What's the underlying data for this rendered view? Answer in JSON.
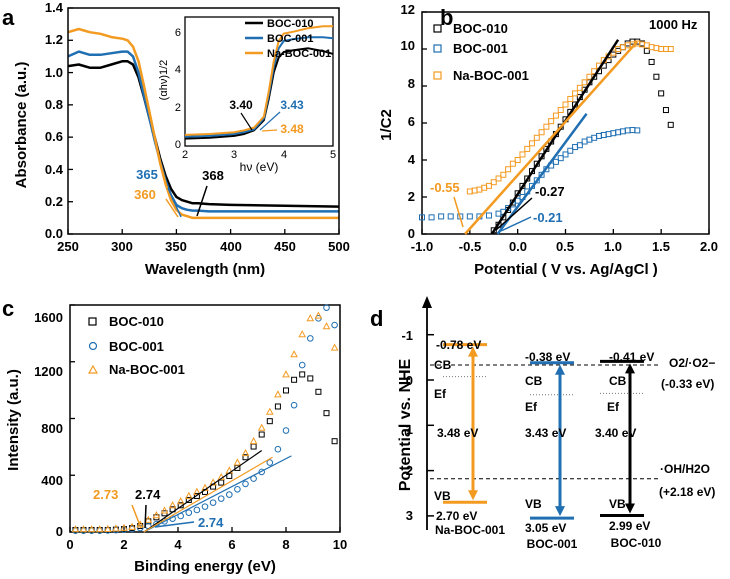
{
  "colors": {
    "black": "#000000",
    "blue": "#1f6fb2",
    "orange": "#f39a21"
  },
  "panel_labels": {
    "a": "a",
    "b": "b",
    "c": "c",
    "d": "d"
  },
  "chart_data": [
    {
      "id": "a",
      "type": "line",
      "title": "",
      "xlabel": "Wavelength (nm)",
      "ylabel": "Absorbance (a.u.)",
      "xlim": [
        250,
        500
      ],
      "ylim": [
        0,
        1.4
      ],
      "xticks": [
        "250",
        "300",
        "350",
        "400",
        "450",
        "500"
      ],
      "yticks": [
        "0.0",
        "0.2",
        "0.4",
        "0.6",
        "0.8",
        "1.0",
        "1.2",
        "1.4"
      ],
      "legend_position": "inset top-right",
      "series": [
        {
          "name": "BOC-010",
          "color": "#000000",
          "x": [
            250,
            260,
            270,
            280,
            290,
            300,
            305,
            310,
            315,
            320,
            325,
            330,
            335,
            340,
            345,
            350,
            355,
            360,
            365,
            370,
            380,
            400,
            450,
            500
          ],
          "y": [
            1.04,
            1.05,
            1.03,
            1.03,
            1.05,
            1.07,
            1.07,
            1.05,
            0.97,
            0.85,
            0.72,
            0.6,
            0.47,
            0.36,
            0.28,
            0.23,
            0.21,
            0.2,
            0.19,
            0.19,
            0.185,
            0.18,
            0.175,
            0.17
          ]
        },
        {
          "name": "BOC-001",
          "color": "#1f6fb2",
          "x": [
            250,
            260,
            270,
            280,
            290,
            300,
            305,
            310,
            315,
            320,
            325,
            330,
            335,
            340,
            345,
            350,
            355,
            360,
            365,
            370,
            380,
            400,
            450,
            500
          ],
          "y": [
            1.1,
            1.13,
            1.11,
            1.11,
            1.12,
            1.13,
            1.13,
            1.1,
            1.0,
            0.86,
            0.72,
            0.58,
            0.45,
            0.33,
            0.24,
            0.18,
            0.16,
            0.15,
            0.145,
            0.145,
            0.14,
            0.14,
            0.14,
            0.14
          ]
        },
        {
          "name": "Na-BOC-001",
          "color": "#f39a21",
          "x": [
            250,
            260,
            270,
            280,
            290,
            300,
            305,
            310,
            315,
            320,
            325,
            330,
            335,
            340,
            345,
            350,
            355,
            360,
            365,
            370,
            380,
            400,
            450,
            500
          ],
          "y": [
            1.25,
            1.27,
            1.25,
            1.24,
            1.22,
            1.21,
            1.2,
            1.16,
            1.07,
            0.92,
            0.76,
            0.6,
            0.44,
            0.31,
            0.21,
            0.15,
            0.12,
            0.11,
            0.1,
            0.1,
            0.1,
            0.1,
            0.1,
            0.1
          ]
        }
      ],
      "annotations": [
        {
          "text": "365",
          "color": "#1f6fb2"
        },
        {
          "text": "360",
          "color": "#f39a21"
        },
        {
          "text": "368",
          "color": "#000000"
        }
      ],
      "inset": {
        "xlabel": "hν (eV)",
        "ylabel": "(αhν)1/2",
        "xlim": [
          2,
          5
        ],
        "ylim": [
          0,
          7
        ],
        "xticks": [
          "2",
          "3",
          "4",
          "5"
        ],
        "yticks": [
          "0",
          "2",
          "4",
          "6"
        ],
        "series": [
          {
            "name": "BOC-010",
            "color": "#000000",
            "x": [
              2.0,
              2.5,
              3.0,
              3.2,
              3.4,
              3.6,
              3.7,
              3.8,
              3.9,
              4.0,
              4.2,
              4.5,
              4.8,
              5.0
            ],
            "y": [
              0.4,
              0.45,
              0.55,
              0.65,
              0.85,
              1.4,
              2.6,
              4.0,
              4.8,
              5.1,
              5.2,
              5.3,
              5.15,
              5.0
            ]
          },
          {
            "name": "BOC-001",
            "color": "#1f6fb2",
            "x": [
              2.0,
              2.5,
              3.0,
              3.2,
              3.4,
              3.6,
              3.7,
              3.8,
              3.9,
              4.0,
              4.2,
              4.5,
              4.8,
              5.0
            ],
            "y": [
              0.5,
              0.55,
              0.65,
              0.75,
              0.9,
              1.5,
              2.8,
              4.3,
              5.3,
              5.7,
              5.8,
              5.9,
              5.9,
              5.85
            ]
          },
          {
            "name": "Na-BOC-001",
            "color": "#f39a21",
            "x": [
              2.0,
              2.5,
              3.0,
              3.2,
              3.4,
              3.6,
              3.7,
              3.8,
              3.9,
              4.0,
              4.2,
              4.5,
              4.8,
              5.0
            ],
            "y": [
              0.6,
              0.65,
              0.75,
              0.85,
              1.0,
              1.6,
              3.0,
              4.6,
              5.7,
              6.1,
              6.2,
              6.4,
              6.5,
              6.5
            ]
          }
        ],
        "annotations": [
          {
            "text": "3.40",
            "color": "#000000"
          },
          {
            "text": "3.43",
            "color": "#1f6fb2"
          },
          {
            "text": "3.48",
            "color": "#f39a21"
          }
        ]
      }
    },
    {
      "id": "b",
      "type": "scatter",
      "title": "1000 Hz",
      "xlabel": "Potential ( V vs. Ag/AgCl )",
      "ylabel": "1/C2",
      "xlim": [
        -1.0,
        2.0
      ],
      "ylim": [
        0,
        12
      ],
      "xticks": [
        "-1.0",
        "-0.5",
        "0.0",
        "0.5",
        "1.0",
        "1.5",
        "2.0"
      ],
      "yticks": [
        "0",
        "2",
        "4",
        "6",
        "8",
        "10",
        "12"
      ],
      "legend_position": "top-left",
      "series": [
        {
          "name": "BOC-010",
          "color": "#000000",
          "x": [
            -0.25,
            -0.2,
            -0.15,
            -0.1,
            -0.05,
            0.0,
            0.05,
            0.1,
            0.15,
            0.2,
            0.25,
            0.3,
            0.35,
            0.4,
            0.45,
            0.5,
            0.55,
            0.6,
            0.65,
            0.7,
            0.75,
            0.8,
            0.85,
            0.9,
            0.95,
            1.0,
            1.05,
            1.1,
            1.15,
            1.2,
            1.25,
            1.3,
            1.35,
            1.4,
            1.45,
            1.5,
            1.55,
            1.6
          ],
          "y": [
            0.2,
            0.5,
            0.9,
            1.3,
            1.7,
            2.2,
            2.6,
            3.0,
            3.4,
            3.8,
            4.2,
            4.6,
            5.0,
            5.4,
            5.8,
            6.2,
            6.6,
            7.0,
            7.4,
            7.8,
            8.2,
            8.5,
            8.8,
            9.1,
            9.4,
            9.7,
            9.9,
            10.1,
            10.3,
            10.4,
            10.4,
            10.3,
            9.9,
            9.3,
            8.5,
            7.6,
            6.7,
            5.9
          ]
        },
        {
          "name": "BOC-001",
          "color": "#1f6fb2",
          "x": [
            -1.0,
            -0.9,
            -0.8,
            -0.7,
            -0.6,
            -0.5,
            -0.4,
            -0.3,
            -0.2,
            -0.15,
            -0.1,
            -0.05,
            0.0,
            0.05,
            0.1,
            0.15,
            0.2,
            0.25,
            0.3,
            0.35,
            0.4,
            0.45,
            0.5,
            0.55,
            0.6,
            0.65,
            0.7,
            0.75,
            0.8,
            0.85,
            0.9,
            0.95,
            1.0,
            1.05,
            1.1,
            1.15,
            1.2,
            1.25
          ],
          "y": [
            0.9,
            0.9,
            0.95,
            0.95,
            0.95,
            0.95,
            0.95,
            1.0,
            1.1,
            1.2,
            1.4,
            1.6,
            1.8,
            2.0,
            2.3,
            2.6,
            2.9,
            3.2,
            3.5,
            3.7,
            3.9,
            4.1,
            4.3,
            4.5,
            4.7,
            4.8,
            5.0,
            5.1,
            5.2,
            5.3,
            5.35,
            5.4,
            5.45,
            5.5,
            5.55,
            5.6,
            5.62,
            5.6
          ]
        },
        {
          "name": "Na-BOC-001",
          "color": "#f39a21",
          "x": [
            -0.5,
            -0.45,
            -0.4,
            -0.35,
            -0.3,
            -0.25,
            -0.2,
            -0.15,
            -0.1,
            -0.05,
            0.0,
            0.05,
            0.1,
            0.15,
            0.2,
            0.25,
            0.3,
            0.35,
            0.4,
            0.45,
            0.5,
            0.55,
            0.6,
            0.65,
            0.7,
            0.75,
            0.8,
            0.85,
            0.9,
            0.95,
            1.0,
            1.05,
            1.1,
            1.15,
            1.2,
            1.25,
            1.3,
            1.35,
            1.4,
            1.45,
            1.5,
            1.55,
            1.6
          ],
          "y": [
            2.3,
            2.35,
            2.4,
            2.5,
            2.6,
            2.8,
            3.0,
            3.2,
            3.5,
            3.8,
            4.0,
            4.3,
            4.6,
            4.9,
            5.2,
            5.5,
            5.8,
            6.1,
            6.4,
            6.7,
            7.0,
            7.3,
            7.6,
            7.9,
            8.2,
            8.5,
            8.8,
            9.1,
            9.4,
            9.6,
            9.8,
            10.0,
            10.1,
            10.2,
            10.25,
            10.3,
            10.25,
            10.2,
            10.1,
            10.05,
            10.0,
            10.0,
            10.0
          ]
        }
      ],
      "fits": [
        {
          "color": "#000000",
          "x": [
            -0.27,
            1.05
          ],
          "y": [
            0,
            10.5
          ]
        },
        {
          "color": "#1f6fb2",
          "x": [
            -0.21,
            0.72
          ],
          "y": [
            0,
            6.5
          ]
        },
        {
          "color": "#f39a21",
          "x": [
            -0.55,
            1.25
          ],
          "y": [
            0,
            10.4
          ]
        }
      ],
      "annotations": [
        {
          "text": "-0.55",
          "color": "#f39a21"
        },
        {
          "text": "-0.27",
          "color": "#000000"
        },
        {
          "text": "-0.21",
          "color": "#1f6fb2"
        }
      ]
    },
    {
      "id": "c",
      "type": "scatter",
      "title": "",
      "xlabel": "Binding energy (eV)",
      "ylabel": "Intensity (a.u.)",
      "xlim": [
        0,
        10
      ],
      "ylim": [
        0,
        1700
      ],
      "xticks": [
        "0",
        "2",
        "4",
        "6",
        "8",
        "10"
      ],
      "yticks": [
        "0",
        "400",
        "800",
        "1200",
        "1600"
      ],
      "legend_position": "top-left",
      "series": [
        {
          "name": "BOC-010",
          "color": "#000000",
          "x": [
            0.2,
            0.5,
            0.8,
            1.1,
            1.4,
            1.7,
            2.0,
            2.3,
            2.6,
            2.9,
            3.2,
            3.5,
            3.8,
            4.1,
            4.4,
            4.7,
            5.0,
            5.3,
            5.6,
            5.9,
            6.2,
            6.5,
            6.8,
            7.1,
            7.4,
            7.7,
            8.0,
            8.3,
            8.6,
            8.9,
            9.2,
            9.5,
            9.8
          ],
          "y": [
            15,
            15,
            15,
            15,
            15,
            18,
            22,
            30,
            45,
            80,
            110,
            140,
            170,
            200,
            240,
            270,
            300,
            340,
            370,
            420,
            480,
            560,
            640,
            730,
            830,
            940,
            1060,
            1140,
            1180,
            1150,
            1050,
            890,
            680
          ]
        },
        {
          "name": "BOC-001",
          "color": "#1f6fb2",
          "x": [
            0.2,
            0.5,
            0.8,
            1.1,
            1.4,
            1.7,
            2.0,
            2.3,
            2.6,
            2.9,
            3.2,
            3.5,
            3.8,
            4.1,
            4.4,
            4.7,
            5.0,
            5.3,
            5.6,
            5.9,
            6.2,
            6.5,
            6.8,
            7.1,
            7.4,
            7.7,
            8.0,
            8.3,
            8.6,
            8.9,
            9.2,
            9.5,
            9.8
          ],
          "y": [
            10,
            10,
            10,
            10,
            12,
            14,
            18,
            22,
            30,
            45,
            60,
            80,
            100,
            120,
            145,
            165,
            190,
            220,
            250,
            280,
            320,
            360,
            400,
            450,
            520,
            620,
            760,
            950,
            1250,
            1450,
            1600,
            1680,
            1550
          ]
        },
        {
          "name": "Na-BOC-001",
          "color": "#f39a21",
          "x": [
            0.2,
            0.5,
            0.8,
            1.1,
            1.4,
            1.7,
            2.0,
            2.3,
            2.6,
            2.9,
            3.2,
            3.5,
            3.8,
            4.1,
            4.4,
            4.7,
            5.0,
            5.3,
            5.6,
            5.9,
            6.2,
            6.5,
            6.8,
            7.1,
            7.4,
            7.7,
            8.0,
            8.3,
            8.6,
            8.9,
            9.2,
            9.5,
            9.8
          ],
          "y": [
            20,
            20,
            20,
            20,
            22,
            25,
            30,
            38,
            55,
            90,
            125,
            160,
            200,
            230,
            270,
            300,
            330,
            370,
            410,
            460,
            520,
            590,
            680,
            780,
            900,
            1030,
            1180,
            1330,
            1480,
            1600,
            1620,
            1540,
            1380
          ]
        }
      ],
      "fits": [
        {
          "color": "#000000",
          "x": [
            2.74,
            7.1
          ],
          "y": [
            0,
            610
          ]
        },
        {
          "color": "#1f6fb2",
          "x": [
            2.74,
            8.2
          ],
          "y": [
            0,
            570
          ]
        },
        {
          "color": "#f39a21",
          "x": [
            2.73,
            7.5
          ],
          "y": [
            0,
            560
          ]
        }
      ],
      "annotations": [
        {
          "text": "2.73",
          "color": "#f39a21"
        },
        {
          "text": "2.74",
          "color": "#000000"
        },
        {
          "text": "2.74",
          "color": "#1f6fb2"
        }
      ]
    },
    {
      "id": "d",
      "type": "diagram",
      "ylabel": "Potential vs. NHE",
      "ylim": [
        -1.6,
        3.2
      ],
      "yticks": [
        "-1",
        "0",
        "1",
        "2",
        "3"
      ],
      "reference_lines": [
        {
          "label": "O2/·O2−",
          "value": "(-0.33 eV)",
          "level": -0.33
        },
        {
          "label": "·OH/H2O",
          "value": "(+2.18 eV)",
          "level": 2.18
        }
      ],
      "materials": [
        {
          "name": "Na-BOC-001",
          "color": "#f39a21",
          "cb": -0.78,
          "vb": 2.7,
          "cb_text": "-0.78 eV",
          "vb_text": "2.70 eV",
          "gap_text": "3.48 eV"
        },
        {
          "name": "BOC-001",
          "color": "#1f6fb2",
          "cb": -0.38,
          "vb": 3.05,
          "cb_text": "-0.38 eV",
          "vb_text": "3.05 eV",
          "gap_text": "3.43 eV"
        },
        {
          "name": "BOC-010",
          "color": "#000000",
          "cb": -0.41,
          "vb": 2.99,
          "cb_text": "-0.41 eV",
          "vb_text": "2.99 eV",
          "gap_text": "3.40 eV"
        }
      ],
      "cb_label": "CB",
      "vb_label": "VB",
      "ef_label": "Ef"
    }
  ]
}
